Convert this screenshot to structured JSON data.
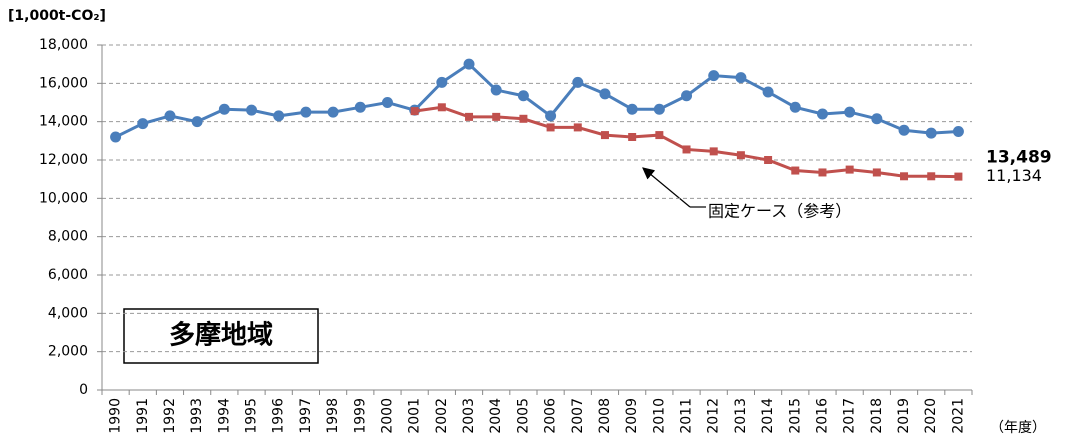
{
  "chart_data": {
    "type": "line",
    "y_label": "[1,000t-CO₂]",
    "x_label": "（年度）",
    "region_label": "多摩地域",
    "annotation": "固定ケース（参考）",
    "categories": [
      "1990",
      "1991",
      "1992",
      "1993",
      "1994",
      "1995",
      "1996",
      "1997",
      "1998",
      "1999",
      "2000",
      "2001",
      "2002",
      "2003",
      "2004",
      "2005",
      "2006",
      "2007",
      "2008",
      "2009",
      "2010",
      "2011",
      "2012",
      "2013",
      "2014",
      "2015",
      "2016",
      "2017",
      "2018",
      "2019",
      "2020",
      "2021"
    ],
    "series": [
      {
        "color": "#4a7ebb",
        "marker": "circle",
        "values": [
          13200,
          13900,
          14300,
          14000,
          14650,
          14600,
          14300,
          14500,
          14500,
          14750,
          15000,
          14600,
          16050,
          17000,
          15650,
          15350,
          14300,
          16050,
          15450,
          14650,
          14650,
          15350,
          16400,
          16300,
          15550,
          14750,
          14400,
          14500,
          14150,
          13550,
          13400,
          13489
        ],
        "value_labels": [
          null,
          null,
          null,
          null,
          null,
          null,
          null,
          null,
          null,
          null,
          null,
          null,
          null,
          null,
          null,
          null,
          null,
          null,
          null,
          null,
          null,
          null,
          null,
          null,
          null,
          null,
          null,
          null,
          null,
          null,
          null,
          "13,489"
        ]
      },
      {
        "color": "#c0504d",
        "marker": "square",
        "values": [
          null,
          null,
          null,
          null,
          null,
          null,
          null,
          null,
          null,
          null,
          null,
          14550,
          14750,
          14250,
          14250,
          14150,
          13700,
          13700,
          13300,
          13200,
          13300,
          12550,
          12450,
          12250,
          12000,
          11450,
          11350,
          11500,
          11350,
          11150,
          11150,
          11134
        ],
        "value_labels": [
          null,
          null,
          null,
          null,
          null,
          null,
          null,
          null,
          null,
          null,
          null,
          null,
          null,
          null,
          null,
          null,
          null,
          null,
          null,
          null,
          null,
          null,
          null,
          null,
          null,
          null,
          null,
          null,
          null,
          null,
          null,
          "11,134"
        ]
      }
    ],
    "ylim": [
      0,
      18000
    ],
    "yticks": [
      {
        "value": 0,
        "label": "0"
      },
      {
        "value": 2000,
        "label": "2,000"
      },
      {
        "value": 4000,
        "label": "4,000"
      },
      {
        "value": 6000,
        "label": "6,000"
      },
      {
        "value": 8000,
        "label": "8,000"
      },
      {
        "value": 10000,
        "label": "10,000"
      },
      {
        "value": 12000,
        "label": "12,000"
      },
      {
        "value": 14000,
        "label": "14,000"
      },
      {
        "value": 16000,
        "label": "16,000"
      },
      {
        "value": 18000,
        "label": "18,000"
      }
    ],
    "grid": true
  }
}
